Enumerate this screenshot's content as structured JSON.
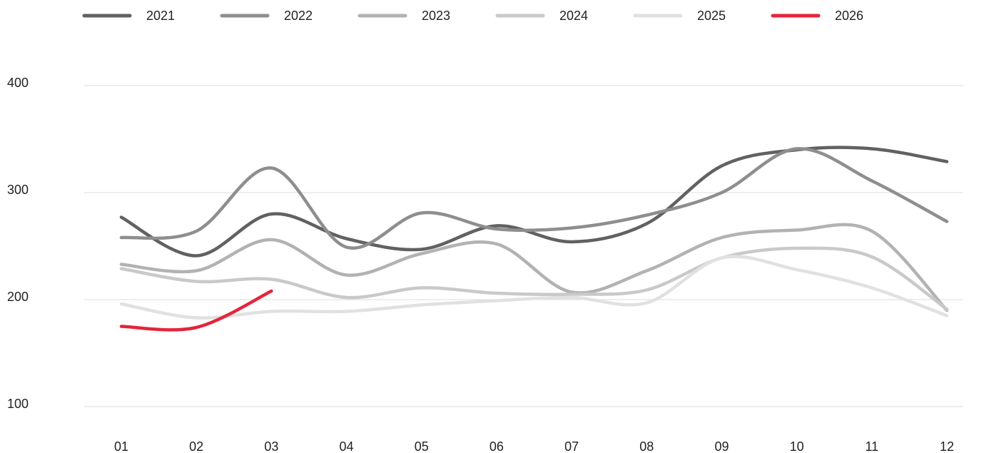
{
  "chart_data": {
    "type": "line",
    "categories": [
      "01",
      "02",
      "03",
      "04",
      "05",
      "06",
      "07",
      "08",
      "09",
      "10",
      "11",
      "12"
    ],
    "series": [
      {
        "name": "2021",
        "color": "#616161",
        "values": [
          277,
          241,
          280,
          257,
          247,
          269,
          254,
          271,
          325,
          340,
          341,
          329
        ]
      },
      {
        "name": "2022",
        "color": "#8e8e8e",
        "values": [
          258,
          264,
          323,
          249,
          281,
          266,
          267,
          279,
          300,
          341,
          311,
          273
        ]
      },
      {
        "name": "2023",
        "color": "#b2b2b2",
        "values": [
          233,
          227,
          256,
          223,
          243,
          252,
          207,
          227,
          258,
          265,
          264,
          190
        ]
      },
      {
        "name": "2024",
        "color": "#c9c9c9",
        "values": [
          229,
          217,
          219,
          202,
          211,
          206,
          205,
          209,
          239,
          248,
          240,
          191
        ]
      },
      {
        "name": "2025",
        "color": "#e1e1e1",
        "values": [
          196,
          183,
          189,
          189,
          195,
          199,
          202,
          197,
          239,
          228,
          211,
          185
        ]
      },
      {
        "name": "2026",
        "color": "#e2263b",
        "values": [
          175,
          174,
          208,
          null,
          null,
          null,
          null,
          null,
          null,
          null,
          null,
          null
        ]
      }
    ],
    "ylim": [
      100,
      400
    ],
    "yticks": [
      100,
      200,
      300,
      400
    ],
    "grid": true,
    "legend": "top"
  }
}
